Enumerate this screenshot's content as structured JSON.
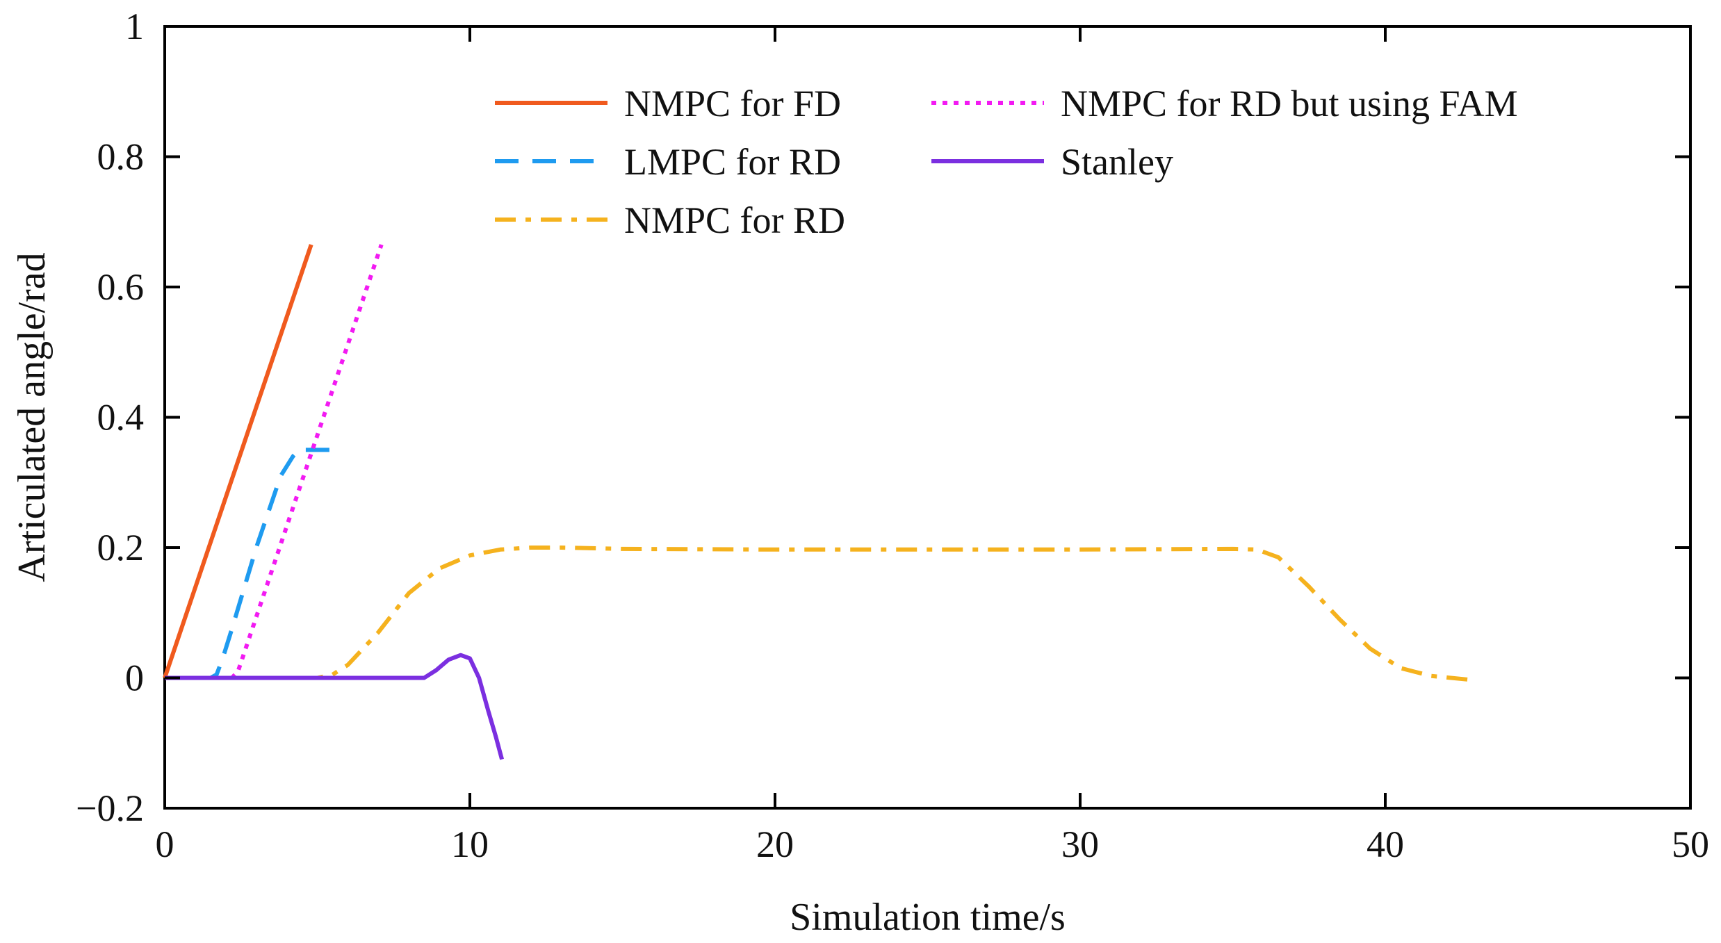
{
  "chart_data": {
    "type": "line",
    "xlabel": "Simulation time/s",
    "ylabel": "Articulated angle/rad",
    "xlim": [
      0,
      50
    ],
    "ylim": [
      -0.2,
      1
    ],
    "xticks": [
      0,
      10,
      20,
      30,
      40,
      50
    ],
    "xtick_labels": [
      "0",
      "10",
      "20",
      "30",
      "40",
      "50"
    ],
    "yticks": [
      -0.2,
      0,
      0.2,
      0.4,
      0.6,
      0.8,
      1
    ],
    "ytick_labels": [
      "−0.2",
      "0",
      "0.2",
      "0.4",
      "0.6",
      "0.8",
      "1"
    ],
    "grid": false,
    "legend_position": "top-right",
    "series": [
      {
        "name": "NMPC for FD",
        "color": "#F05A1E",
        "style": "solid",
        "x": [
          0,
          4.8
        ],
        "y": [
          0,
          0.665
        ]
      },
      {
        "name": "LMPC for RD",
        "color": "#1E9BF0",
        "style": "dashed",
        "x": [
          0,
          1.5,
          1.7,
          1.9,
          2.2,
          3.0,
          3.8,
          4.2,
          4.4,
          4.5,
          5.0,
          5.8
        ],
        "y": [
          0,
          0,
          0.005,
          0.03,
          0.075,
          0.2,
          0.31,
          0.34,
          0.35,
          0.35,
          0.35,
          0.35
        ]
      },
      {
        "name": "NMPC for RD",
        "color": "#F5B21E",
        "style": "dashdot",
        "x": [
          0,
          3,
          5,
          5.5,
          6,
          7,
          8,
          9,
          10,
          11,
          12,
          13,
          14,
          15,
          20,
          25,
          30,
          35,
          35.8,
          36.5,
          37.5,
          38.5,
          39.5,
          40.5,
          41.5,
          42.8
        ],
        "y": [
          0,
          0,
          0,
          0.005,
          0.02,
          0.07,
          0.13,
          0.168,
          0.188,
          0.197,
          0.2,
          0.2,
          0.199,
          0.198,
          0.197,
          0.197,
          0.197,
          0.198,
          0.197,
          0.185,
          0.14,
          0.09,
          0.045,
          0.015,
          0.003,
          -0.003
        ]
      },
      {
        "name": "NMPC for RD but using FAM",
        "color": "#F21AF2",
        "style": "dotted",
        "x": [
          0,
          2.2,
          2.4,
          7.1
        ],
        "y": [
          0,
          0,
          0.01,
          0.665
        ]
      },
      {
        "name": "Stanley",
        "color": "#7B2FE0",
        "style": "solid",
        "x": [
          0,
          8.5,
          8.9,
          9.3,
          9.7,
          10.0,
          10.3,
          10.6,
          10.85,
          11.05
        ],
        "y": [
          0,
          0,
          0.012,
          0.028,
          0.035,
          0.03,
          0.0,
          -0.05,
          -0.09,
          -0.125
        ]
      }
    ]
  }
}
